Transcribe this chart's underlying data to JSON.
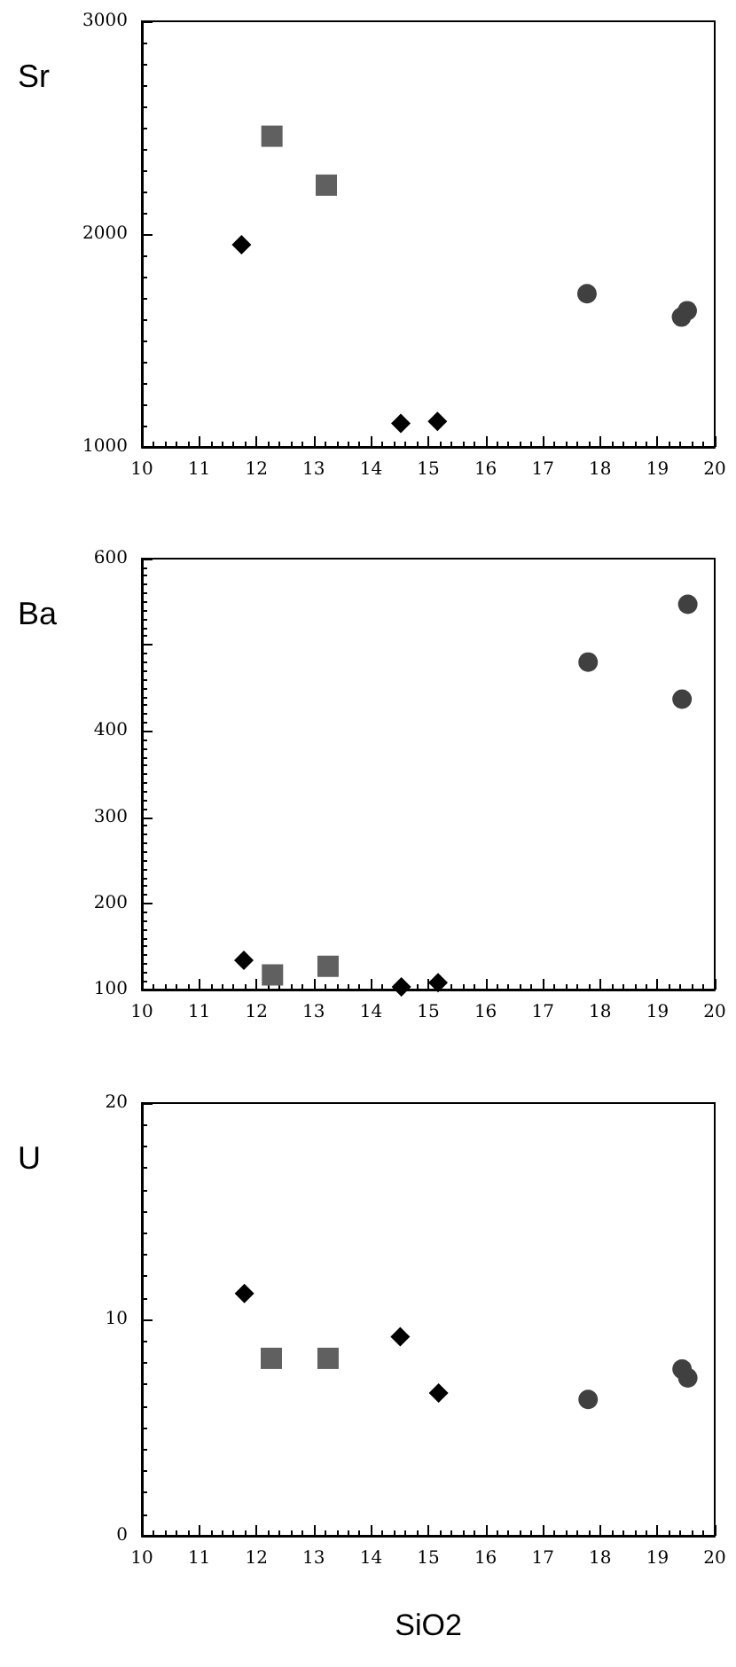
{
  "chart_data": [
    {
      "type": "scatter",
      "ylabel": "Sr",
      "xlim": [
        10,
        20
      ],
      "xticks": [
        10,
        11,
        12,
        13,
        14,
        15,
        16,
        17,
        18,
        19,
        20
      ],
      "ylim": [
        1000,
        3000
      ],
      "yticks": [
        1000,
        2000,
        3000
      ],
      "grid": false,
      "series": [
        {
          "color": "#000000",
          "marker": "diamond",
          "x": [
            11.74,
            14.52,
            15.16
          ],
          "values": [
            1950,
            1110,
            1120
          ]
        },
        {
          "color": "#606060",
          "marker": "square",
          "x": [
            12.27,
            13.22
          ],
          "values": [
            2460,
            2230
          ]
        },
        {
          "color": "#404040",
          "marker": "circle",
          "x": [
            17.77,
            19.42,
            19.52
          ],
          "values": [
            1720,
            1610,
            1640
          ]
        }
      ]
    },
    {
      "type": "scatter",
      "ylabel": "Ba",
      "xlim": [
        10,
        20
      ],
      "xticks": [
        10,
        11,
        12,
        13,
        14,
        15,
        16,
        17,
        18,
        19,
        20
      ],
      "ylim": [
        100,
        600
      ],
      "yticks": [
        100,
        200,
        300,
        400,
        {
          "value": 500,
          "label": null
        },
        600
      ],
      "grid": false,
      "series": [
        {
          "color": "#000000",
          "marker": "diamond",
          "x": [
            11.78,
            14.53,
            15.17
          ],
          "values": [
            134,
            103,
            108
          ]
        },
        {
          "color": "#606060",
          "marker": "square",
          "x": [
            12.28,
            13.25
          ],
          "values": [
            117,
            127
          ]
        },
        {
          "color": "#404040",
          "marker": "circle",
          "x": [
            17.79,
            19.43,
            19.53
          ],
          "values": [
            480,
            437,
            547
          ]
        }
      ]
    },
    {
      "type": "scatter",
      "ylabel": "U",
      "xlabel": "SiO2",
      "xlim": [
        10,
        20
      ],
      "xticks": [
        10,
        11,
        12,
        13,
        14,
        15,
        16,
        17,
        18,
        19,
        20
      ],
      "ylim": [
        0,
        20
      ],
      "yticks": [
        0,
        10,
        20
      ],
      "grid": false,
      "series": [
        {
          "color": "#000000",
          "marker": "diamond",
          "x": [
            11.79,
            14.51,
            15.18
          ],
          "values": [
            11.2,
            9.2,
            6.6
          ]
        },
        {
          "color": "#606060",
          "marker": "square",
          "x": [
            12.26,
            13.25
          ],
          "values": [
            8.2,
            8.2
          ]
        },
        {
          "color": "#404040",
          "marker": "circle",
          "x": [
            17.79,
            19.43,
            19.53
          ],
          "values": [
            6.3,
            7.7,
            7.3
          ]
        }
      ]
    }
  ]
}
